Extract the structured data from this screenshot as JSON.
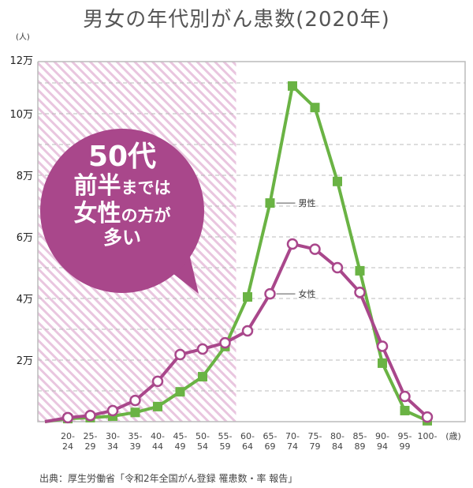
{
  "title": "男女の年代別がん患数(2020年)",
  "source": "出典：厚生労働省「令和2年全国がん登録 罹患数・率 報告」",
  "callout": {
    "line1": "50代",
    "line2_big": "前半",
    "line2_small": "までは",
    "line3_big": "女性",
    "line3_small": "の方が",
    "line4": "多い",
    "color": "#a9478b"
  },
  "chart_data": {
    "type": "line",
    "title": "男女の年代別がん患数(2020年)",
    "ylabel": "(人)",
    "xlabel": "(歳)",
    "ylim": [
      0,
      120000
    ],
    "yticks": [
      20000,
      40000,
      60000,
      80000,
      100000,
      120000
    ],
    "ytick_labels": [
      "2万",
      "4万",
      "6万",
      "8万",
      "10万",
      "12万"
    ],
    "grid": "horizontal dashed every 1万",
    "categories": [
      "20-24",
      "25-29",
      "30-34",
      "35-39",
      "40-44",
      "45-49",
      "50-54",
      "55-59",
      "60-64",
      "65-69",
      "70-74",
      "75-79",
      "80-84",
      "85-89",
      "90-94",
      "95-99",
      "100-"
    ],
    "highlight_range": [
      "20-24",
      "55-59"
    ],
    "series": [
      {
        "name": "男性",
        "color": "#6ab344",
        "marker": "square",
        "values": [
          1000,
          1300,
          1800,
          3000,
          4900,
          9700,
          14600,
          24400,
          40500,
          71000,
          109000,
          102000,
          78000,
          49000,
          19000,
          3600,
          300
        ]
      },
      {
        "name": "女性",
        "color": "#a9478b",
        "marker": "open-circle",
        "values": [
          1300,
          2000,
          3600,
          6900,
          13100,
          21800,
          23600,
          25600,
          29500,
          41500,
          57700,
          56000,
          50000,
          42000,
          24500,
          8200,
          1500
        ]
      }
    ]
  }
}
